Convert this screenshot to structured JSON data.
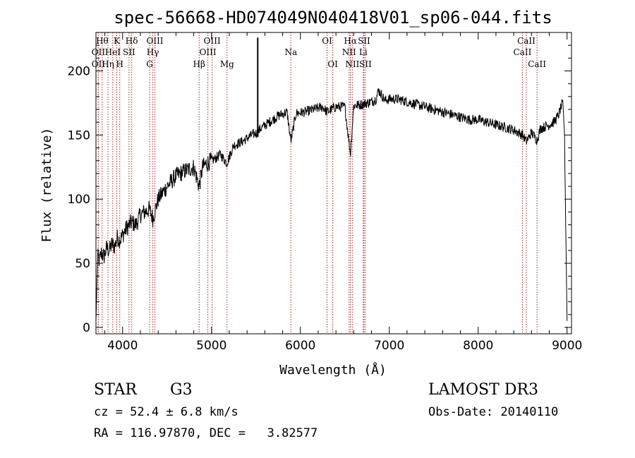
{
  "chart_data": {
    "type": "line",
    "title": "spec-56668-HD074049N040418V01_sp06-044.fits",
    "xlabel": "Wavelength (Å)",
    "ylabel": "Flux (relative)",
    "xlim": [
      3700,
      9050
    ],
    "ylim": [
      -5,
      230
    ],
    "xticks": [
      4000,
      5000,
      6000,
      7000,
      8000,
      9000
    ],
    "yticks": [
      0,
      50,
      100,
      150,
      200
    ],
    "series": [
      {
        "name": "flux",
        "x": [
          3700,
          3720,
          3740,
          3760,
          3790,
          3820,
          3850,
          3880,
          3910,
          3940,
          3970,
          4000,
          4050,
          4100,
          4150,
          4200,
          4250,
          4300,
          4340,
          4400,
          4500,
          4600,
          4700,
          4800,
          4861,
          4900,
          4950,
          5000,
          5050,
          5100,
          5172,
          5250,
          5350,
          5450,
          5520,
          5550,
          5650,
          5750,
          5850,
          5893,
          5950,
          6050,
          6150,
          6250,
          6300,
          6400,
          6500,
          6563,
          6600,
          6700,
          6800,
          6850,
          6880,
          6950,
          7000,
          7100,
          7200,
          7300,
          7400,
          7500,
          7600,
          7700,
          7800,
          7900,
          8000,
          8100,
          8200,
          8300,
          8400,
          8500,
          8542,
          8600,
          8662,
          8700,
          8800,
          8850,
          8900,
          8950,
          8970,
          9000
        ],
        "y": [
          5,
          55,
          52,
          58,
          55,
          62,
          60,
          65,
          63,
          70,
          68,
          72,
          78,
          82,
          80,
          88,
          90,
          92,
          85,
          100,
          110,
          118,
          122,
          125,
          110,
          125,
          128,
          130,
          132,
          135,
          128,
          142,
          145,
          150,
          152,
          155,
          160,
          165,
          168,
          145,
          167,
          168,
          170,
          172,
          168,
          172,
          172,
          135,
          173,
          174,
          176,
          178,
          185,
          177,
          178,
          178,
          176,
          174,
          172,
          170,
          168,
          166,
          164,
          162,
          162,
          160,
          158,
          156,
          154,
          150,
          145,
          152,
          146,
          155,
          158,
          160,
          165,
          175,
          155,
          5
        ]
      }
    ],
    "spike": {
      "x": 5520,
      "y_top": 226
    },
    "lines": [
      {
        "wl": 3727,
        "label": "OII",
        "row": 2
      },
      {
        "wl": 3727,
        "label": "OII",
        "row": 3
      },
      {
        "wl": 3770,
        "label": "Hθ",
        "row": 1
      },
      {
        "wl": 3835,
        "label": "Hη",
        "row": 3
      },
      {
        "wl": 3889,
        "label": "HeI",
        "row": 2
      },
      {
        "wl": 3934,
        "label": "K",
        "row": 1
      },
      {
        "wl": 3968,
        "label": "H",
        "row": 3
      },
      {
        "wl": 4072,
        "label": "SII",
        "row": 2
      },
      {
        "wl": 4102,
        "label": "Hδ",
        "row": 1
      },
      {
        "wl": 4304,
        "label": "G",
        "row": 3
      },
      {
        "wl": 4340,
        "label": "Hγ",
        "row": 2
      },
      {
        "wl": 4363,
        "label": "OIII",
        "row": 1
      },
      {
        "wl": 4861,
        "label": "Hβ",
        "row": 3
      },
      {
        "wl": 4959,
        "label": "OIII",
        "row": 2
      },
      {
        "wl": 5007,
        "label": "OIII",
        "row": 1
      },
      {
        "wl": 5175,
        "label": "Mg",
        "row": 3
      },
      {
        "wl": 5893,
        "label": "Na",
        "row": 2
      },
      {
        "wl": 6300,
        "label": "OI",
        "row": 1
      },
      {
        "wl": 6364,
        "label": "OI",
        "row": 3
      },
      {
        "wl": 6548,
        "label": "NII",
        "row": 2
      },
      {
        "wl": 6563,
        "label": "Hα",
        "row": 1
      },
      {
        "wl": 6584,
        "label": "NII",
        "row": 3
      },
      {
        "wl": 6707,
        "label": "Li",
        "row": 2
      },
      {
        "wl": 6716,
        "label": "SII",
        "row": 1
      },
      {
        "wl": 6731,
        "label": "SII",
        "row": 3
      },
      {
        "wl": 8498,
        "label": "CaII",
        "row": 2
      },
      {
        "wl": 8542,
        "label": "CaII",
        "row": 1
      },
      {
        "wl": 8662,
        "label": "CaII",
        "row": 3
      }
    ]
  },
  "info": {
    "class_label": "STAR",
    "subclass": "G3",
    "survey": "LAMOST DR3",
    "cz": "cz = 52.4 ± 6.8 km/s",
    "obs_date": "Obs-Date: 20140110",
    "coords": "RA = 116.97870, DEC =   3.82577"
  },
  "colors": {
    "line": "#000000",
    "marker": "#b22222",
    "axes": "#000000",
    "background": "#ffffff"
  }
}
